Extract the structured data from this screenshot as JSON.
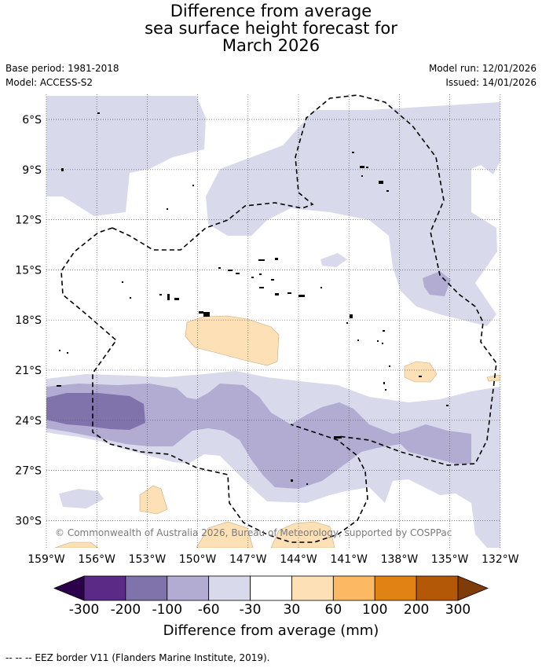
{
  "title": {
    "line1": "Difference from average",
    "line2": "sea surface height forecast for",
    "line3": "March 2026"
  },
  "meta_left": {
    "base_period": "Base period: 1981-2018",
    "model": "Model: ACCESS-S2"
  },
  "meta_right": {
    "model_run": "Model run: 12/01/2026",
    "issued": "Issued: 14/01/2026"
  },
  "map": {
    "lat_labels": [
      "6°S",
      "9°S",
      "12°S",
      "15°S",
      "18°S",
      "21°S",
      "24°S",
      "27°S",
      "30°S"
    ],
    "lon_labels": [
      "159°W",
      "156°W",
      "153°W",
      "150°W",
      "147°W",
      "144°W",
      "141°W",
      "138°W",
      "135°W",
      "132°W"
    ],
    "copyright": "© Commonwealth of Australia 2026, Bureau of Meteorology, supported by COSPPac"
  },
  "colorbar": {
    "labels": [
      "-300",
      "-200",
      "-100",
      "-60",
      "-30",
      "30",
      "60",
      "100",
      "200",
      "300"
    ],
    "colors": [
      "#5b2a86",
      "#8073ac",
      "#b2abd2",
      "#d8daeb",
      "#ffffff",
      "#fee0b6",
      "#fdb863",
      "#e08214",
      "#b35806"
    ],
    "under_color": "#2d004b",
    "over_color": "#7f3b08",
    "title": "Difference from average (mm)"
  },
  "footnote": "--  --  -- EEZ border V11 (Flanders Marine Institute, 2019)."
}
